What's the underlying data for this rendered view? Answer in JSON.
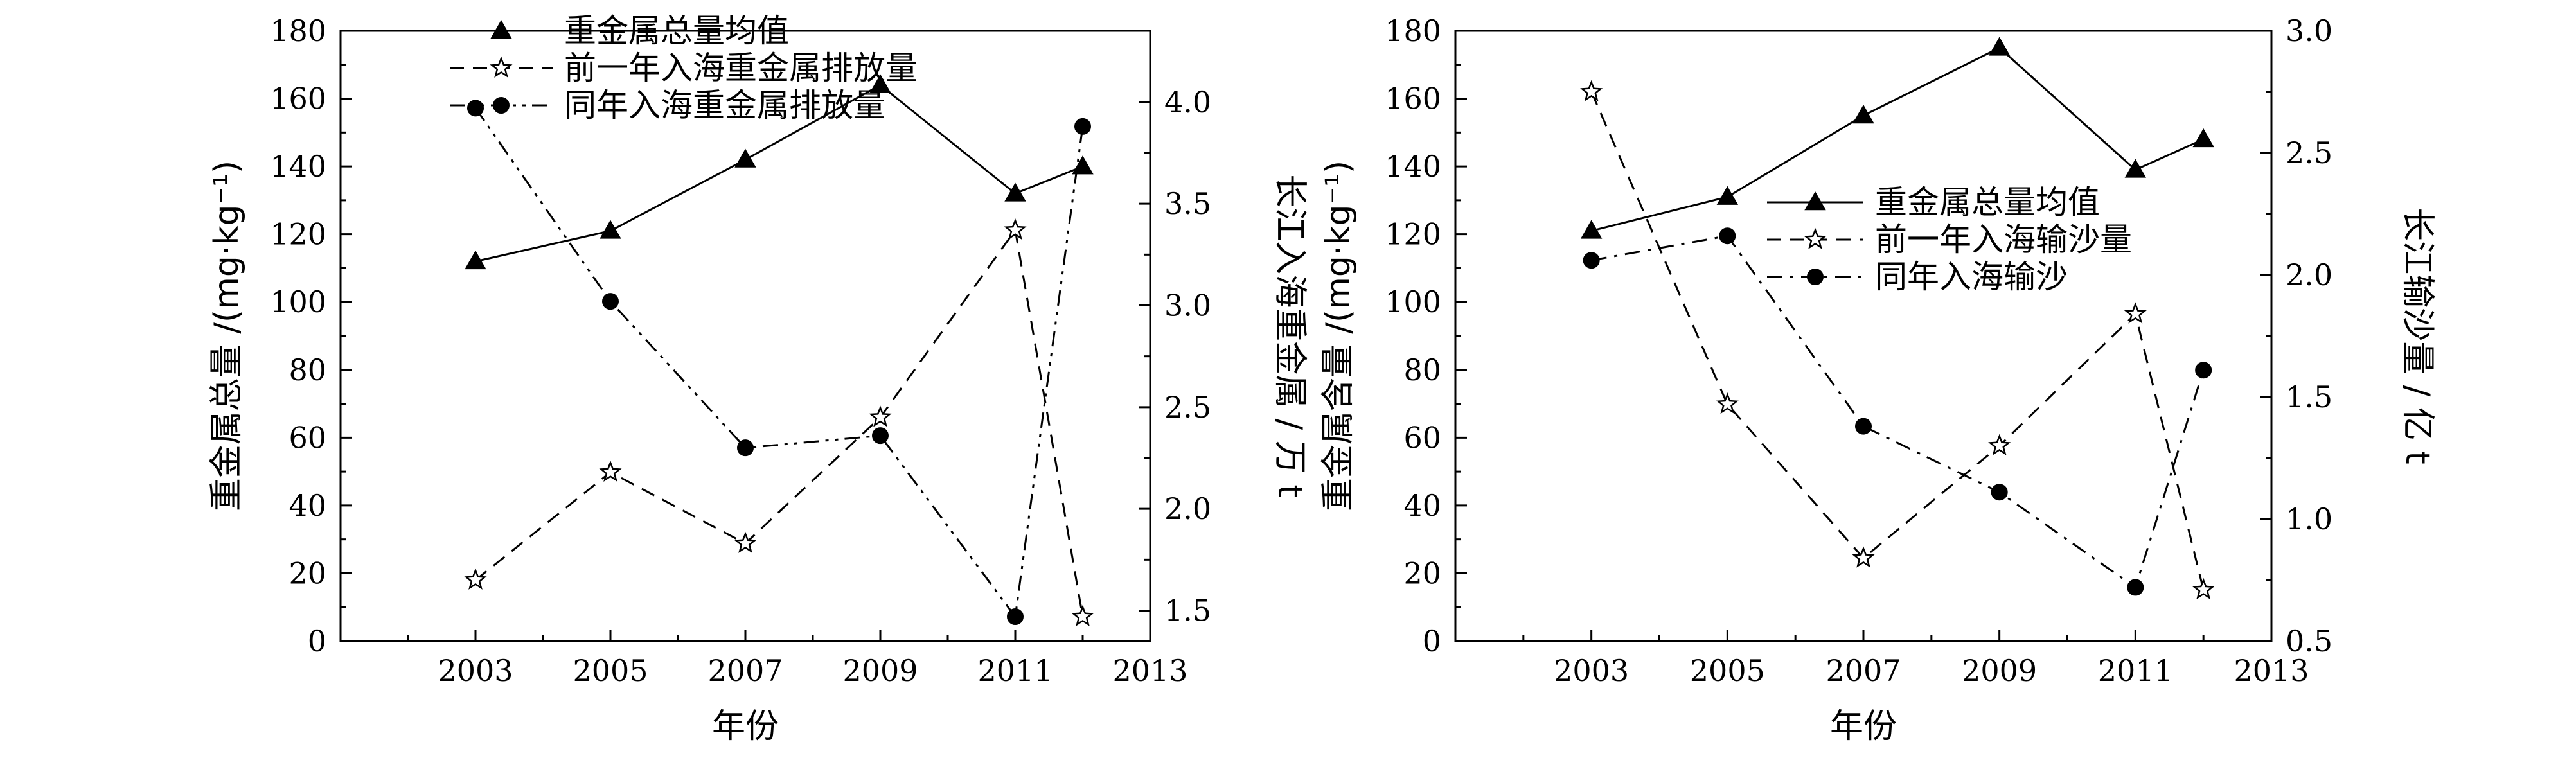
{
  "chart_data": [
    {
      "type": "line",
      "xlabel": "年份",
      "ylabel": "重金属总量 /(mg·kg⁻¹)",
      "y2label": "长江入海重金属 / 万 t",
      "xlim": [
        2001,
        2013
      ],
      "xticks": [
        2003,
        2005,
        2007,
        2009,
        2011,
        2013
      ],
      "ylim": [
        0,
        180
      ],
      "yticks": [
        0,
        20,
        40,
        60,
        80,
        100,
        120,
        140,
        160,
        180
      ],
      "y2lim": [
        1.35,
        4.35
      ],
      "y2ticks": [
        "1.5",
        "2.0",
        "2.5",
        "3.0",
        "3.5",
        "4.0"
      ],
      "legend_position": "top-center",
      "series": [
        {
          "name": "重金属总量均值",
          "axis": "left",
          "style": "solid",
          "marker": "triangle",
          "x": [
            2003,
            2005,
            2007,
            2009,
            2011,
            2012
          ],
          "y": [
            112,
            121,
            142,
            164,
            132,
            140
          ]
        },
        {
          "name": "前一年入海重金属排放量",
          "axis": "right",
          "style": "dashed",
          "marker": "star",
          "x": [
            2003,
            2005,
            2007,
            2009,
            2011,
            2012
          ],
          "y": [
            1.65,
            2.18,
            1.83,
            2.45,
            3.37,
            1.47
          ]
        },
        {
          "name": "同年入海重金属排放量",
          "axis": "right",
          "style": "dashdotdot",
          "marker": "circle",
          "x": [
            2003,
            2005,
            2007,
            2009,
            2011,
            2012
          ],
          "y": [
            3.97,
            3.02,
            2.3,
            2.36,
            1.47,
            3.88
          ]
        }
      ]
    },
    {
      "type": "line",
      "xlabel": "年份",
      "ylabel": "重金属含量 /(mg·kg⁻¹)",
      "y2label": "长江输沙量 / 亿 t",
      "xlim": [
        2001,
        2013
      ],
      "xticks": [
        2003,
        2005,
        2007,
        2009,
        2011,
        2013
      ],
      "ylim": [
        0,
        180
      ],
      "yticks": [
        0,
        20,
        40,
        60,
        80,
        100,
        120,
        140,
        160,
        180
      ],
      "y2lim": [
        0.5,
        3.0
      ],
      "y2ticks": [
        "0.5",
        "1.0",
        "1.5",
        "2.0",
        "2.5",
        "3.0"
      ],
      "legend_position": "center-right",
      "series": [
        {
          "name": "重金属总量均值",
          "axis": "left",
          "style": "solid",
          "marker": "triangle",
          "x": [
            2003,
            2005,
            2007,
            2009,
            2011,
            2012
          ],
          "y": [
            121,
            131,
            155,
            175,
            139,
            148
          ]
        },
        {
          "name": "前一年入海输沙量",
          "axis": "right",
          "style": "dashed",
          "marker": "star",
          "x": [
            2003,
            2005,
            2007,
            2009,
            2011,
            2012
          ],
          "y": [
            2.75,
            1.47,
            0.84,
            1.3,
            1.84,
            0.71
          ]
        },
        {
          "name": "同年入海输沙",
          "axis": "right",
          "style": "dashdot",
          "marker": "circle",
          "x": [
            2003,
            2005,
            2007,
            2009,
            2011,
            2012
          ],
          "y": [
            2.06,
            2.16,
            1.38,
            1.11,
            0.72,
            1.61
          ]
        }
      ]
    }
  ]
}
